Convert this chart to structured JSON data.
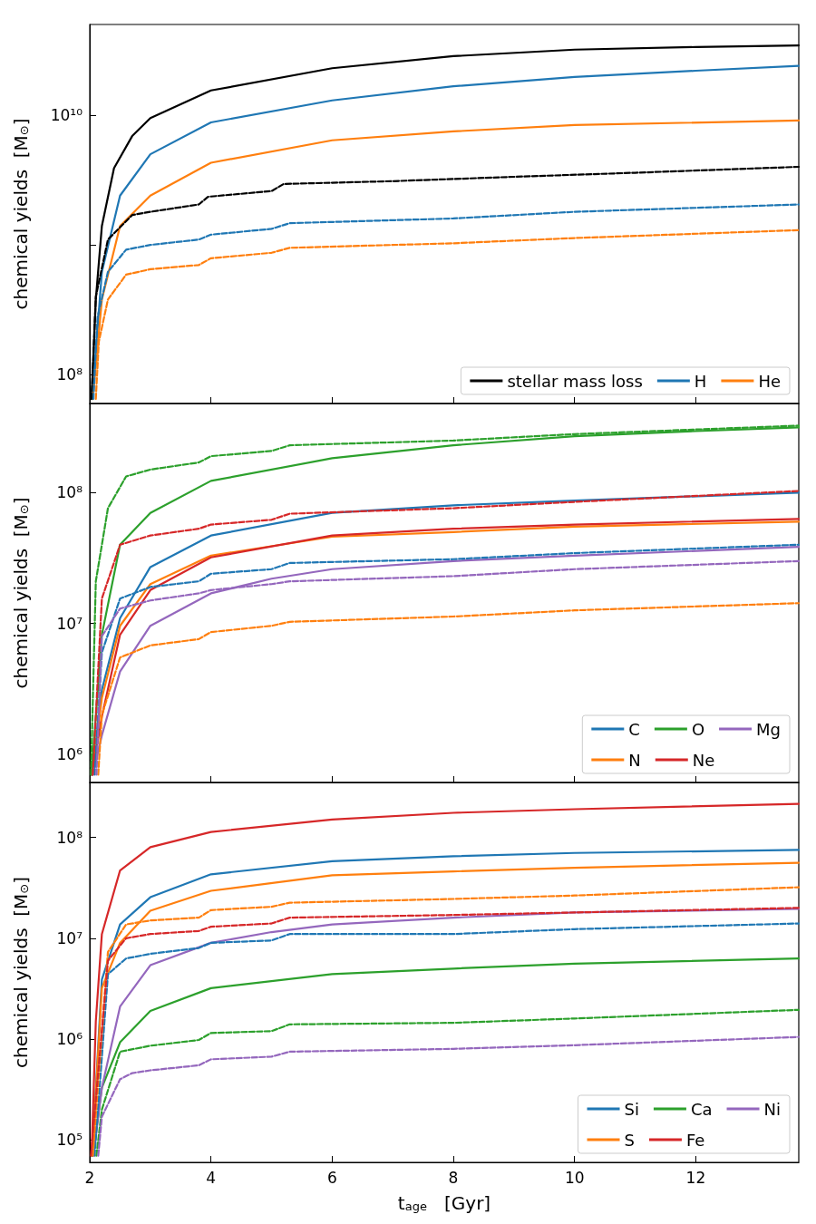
{
  "chart_data": [
    {
      "type": "line",
      "ylabel": "chemical yields  [M$_{⊙}$]",
      "log": "y",
      "xlim": [
        2,
        13.7
      ],
      "xticks": [
        2,
        4,
        6,
        8,
        10,
        12
      ],
      "ylim": [
        60000000.0,
        50000000000.0
      ],
      "yticks": [
        {
          "value": 100000000.0,
          "label": "10⁸"
        },
        {
          "value": 1000000000.0,
          "label": null
        },
        {
          "value": 10000000000.0,
          "label": "10¹⁰"
        }
      ],
      "tick_labels": "y",
      "legend": "bottom right",
      "marker": "none",
      "grid": false,
      "series": [
        {
          "name": "stellar mass loss",
          "color": "#000000",
          "line_style": "solid",
          "x": [
            2.03,
            2.1,
            2.2,
            2.4,
            2.7,
            3,
            4,
            6,
            8,
            10,
            12,
            13.7
          ],
          "values": [
            65000000.0,
            380000000.0,
            1400000000.0,
            3900000000.0,
            6900000000.0,
            9500000000.0,
            15500000000.0,
            23000000000.0,
            28500000000.0,
            32000000000.0,
            33500000000.0,
            34500000000.0
          ]
        },
        {
          "name": "H",
          "color": "#1f77b4",
          "line_style": "solid",
          "x": [
            2.04,
            2.2,
            2.5,
            3,
            4,
            6,
            8,
            10,
            12,
            13.7
          ],
          "values": [
            65000000.0,
            620000000.0,
            2400000000.0,
            5000000000.0,
            8800000000.0,
            13000000000.0,
            16700000000.0,
            19700000000.0,
            22000000000.0,
            24000000000.0
          ]
        },
        {
          "name": "He",
          "color": "#ff7f0e",
          "line_style": "solid",
          "x": [
            2.05,
            2.2,
            2.5,
            3,
            4,
            6,
            8,
            10,
            13.7
          ],
          "values": [
            65000000.0,
            380000000.0,
            1400000000.0,
            2400000000.0,
            4300000000.0,
            6400000000.0,
            7500000000.0,
            8400000000.0,
            9100000000.0
          ]
        },
        {
          "color": "#000000",
          "line_style": "dashed",
          "x": [
            2.03,
            2.1,
            2.3,
            2.7,
            3,
            3.8,
            3.95,
            5,
            5.2,
            7,
            9,
            11,
            13.7
          ],
          "values": [
            65000000.0,
            400000000.0,
            1100000000.0,
            1700000000.0,
            1800000000.0,
            2050000000.0,
            2350000000.0,
            2600000000.0,
            2950000000.0,
            3100000000.0,
            3350000000.0,
            3600000000.0,
            4000000000.0
          ]
        },
        {
          "color": "#1f77b4",
          "line_style": "dashed",
          "x": [
            2.06,
            2.13,
            2.3,
            2.6,
            3,
            3.8,
            4,
            5,
            5.3,
            8,
            10,
            13.7
          ],
          "values": [
            65000000.0,
            280000000.0,
            620000000.0,
            920000000.0,
            1000000000.0,
            1100000000.0,
            1200000000.0,
            1330000000.0,
            1470000000.0,
            1600000000.0,
            1800000000.0,
            2050000000.0
          ]
        },
        {
          "color": "#ff7f0e",
          "line_style": "dashed",
          "x": [
            2.1,
            2.15,
            2.3,
            2.6,
            3,
            3.8,
            4,
            5,
            5.3,
            8,
            10,
            13.7
          ],
          "values": [
            65000000.0,
            180000000.0,
            380000000.0,
            590000000.0,
            650000000.0,
            700000000.0,
            790000000.0,
            870000000.0,
            950000000.0,
            1030000000.0,
            1130000000.0,
            1300000000.0
          ]
        }
      ]
    },
    {
      "type": "line",
      "ylabel": "chemical yields  [M$_{⊙}$]",
      "log": "y",
      "xlim": [
        2,
        13.7
      ],
      "xticks": [
        2,
        4,
        6,
        8,
        10,
        12
      ],
      "ylim": [
        610000.0,
        480000000.0
      ],
      "yticks": [
        {
          "value": 1000000.0,
          "label": "10⁶"
        },
        {
          "value": 10000000.0,
          "label": "10⁷"
        },
        {
          "value": 100000000.0,
          "label": "10⁸"
        }
      ],
      "tick_labels": "y",
      "legend": "bottom right",
      "marker": "none",
      "grid": false,
      "series": [
        {
          "name": "C",
          "color": "#1f77b4",
          "line_style": "solid",
          "x": [
            2.04,
            2.2,
            2.5,
            3,
            4,
            6,
            8,
            10,
            13.7
          ],
          "values": [
            700000.0,
            3100000.0,
            11000000.0,
            27000000.0,
            47000000.0,
            70000000.0,
            80000000.0,
            87000000.0,
            100000000.0
          ]
        },
        {
          "name": "N",
          "color": "#ff7f0e",
          "line_style": "solid",
          "x": [
            2.04,
            2.2,
            2.5,
            3,
            4,
            6,
            8,
            10,
            13.7
          ],
          "values": [
            700000.0,
            2700000.0,
            9600000.0,
            20000000.0,
            33000000.0,
            46000000.0,
            50000000.0,
            55000000.0,
            60000000.0
          ]
        },
        {
          "name": "O",
          "color": "#2ca02c",
          "line_style": "solid",
          "x": [
            2.03,
            2.2,
            2.5,
            3,
            4,
            6,
            8,
            10,
            12,
            13.7
          ],
          "values": [
            700000.0,
            8200000.0,
            40000000.0,
            70000000.0,
            123000000.0,
            183000000.0,
            230000000.0,
            270000000.0,
            295000000.0,
            315000000.0
          ]
        },
        {
          "name": "Ne",
          "color": "#d62728",
          "line_style": "solid",
          "x": [
            2.04,
            2.2,
            2.5,
            3,
            4,
            6,
            8,
            10,
            13.7
          ],
          "values": [
            700000.0,
            1950000.0,
            8200000.0,
            18000000.0,
            32000000.0,
            47000000.0,
            53000000.0,
            57000000.0,
            63000000.0
          ]
        },
        {
          "name": "Mg",
          "color": "#9467bd",
          "line_style": "solid",
          "x": [
            2.05,
            2.2,
            2.5,
            3,
            4,
            5,
            6,
            8,
            10,
            13.7
          ],
          "values": [
            700000.0,
            1400000.0,
            4300000.0,
            9600000.0,
            17000000.0,
            22000000.0,
            26000000.0,
            30000000.0,
            33000000.0,
            38500000.0
          ]
        },
        {
          "color": "#1f77b4",
          "line_style": "dashed",
          "x": [
            2.08,
            2.2,
            2.5,
            3,
            3.8,
            4,
            5,
            5.3,
            8,
            10,
            13.7
          ],
          "values": [
            700000.0,
            6000000.0,
            15500000.0,
            19000000.0,
            21000000.0,
            24000000.0,
            26000000.0,
            29000000.0,
            31000000.0,
            34500000.0,
            40000000.0
          ]
        },
        {
          "color": "#ff7f0e",
          "line_style": "dashed",
          "x": [
            2.14,
            2.2,
            2.5,
            3,
            3.8,
            4,
            5,
            5.3,
            8,
            10,
            13.7
          ],
          "values": [
            700000.0,
            2000000.0,
            5500000.0,
            6800000.0,
            7600000.0,
            8600000.0,
            9600000.0,
            10300000.0,
            11300000.0,
            12600000.0,
            14300000.0
          ]
        },
        {
          "color": "#2ca02c",
          "line_style": "dashed",
          "x": [
            2.02,
            2.1,
            2.3,
            2.6,
            3,
            3.8,
            4,
            5,
            5.3,
            8,
            10,
            13.7
          ],
          "values": [
            700000.0,
            21000000.0,
            76000000.0,
            133000000.0,
            150000000.0,
            170000000.0,
            190000000.0,
            208000000.0,
            230000000.0,
            250000000.0,
            280000000.0,
            325000000.0
          ]
        },
        {
          "color": "#d62728",
          "line_style": "dashed",
          "x": [
            2.05,
            2.2,
            2.5,
            3,
            3.8,
            4,
            5,
            5.3,
            8,
            10,
            13.7
          ],
          "values": [
            700000.0,
            15500000.0,
            40000000.0,
            47000000.0,
            53000000.0,
            57000000.0,
            62000000.0,
            69000000.0,
            76000000.0,
            85000000.0,
            103000000.0
          ]
        },
        {
          "color": "#9467bd",
          "line_style": "dashed",
          "x": [
            2.11,
            2.2,
            2.5,
            3,
            3.8,
            4,
            5,
            5.3,
            8,
            10,
            13.7
          ],
          "values": [
            700000.0,
            8000000.0,
            13000000.0,
            15000000.0,
            17000000.0,
            18000000.0,
            20000000.0,
            21000000.0,
            23000000.0,
            26000000.0,
            30000000.0
          ]
        }
      ]
    },
    {
      "type": "line",
      "xlabel": "t$_{age}$   [Gyr]",
      "ylabel": "chemical yields  [M$_{⊙}$]",
      "log": "y",
      "xlim": [
        2,
        13.7
      ],
      "xticks": [
        2,
        4,
        6,
        8,
        10,
        12
      ],
      "ylim": [
        60000.0,
        350000000.0
      ],
      "yticks": [
        {
          "value": 100000.0,
          "label": "10⁵"
        },
        {
          "value": 1000000.0,
          "label": "10⁶"
        },
        {
          "value": 10000000.0,
          "label": "10⁷"
        },
        {
          "value": 100000000.0,
          "label": "10⁸"
        }
      ],
      "legend": "bottom right",
      "marker": "none",
      "grid": false,
      "series": [
        {
          "name": "Si",
          "color": "#1f77b4",
          "line_style": "solid",
          "x": [
            2.04,
            2.2,
            2.5,
            3,
            4,
            6,
            8,
            10,
            13.7
          ],
          "values": [
            70000.0,
            3900000.0,
            13700000.0,
            25500000.0,
            43000000.0,
            58000000.0,
            65000000.0,
            70000000.0,
            75000000.0
          ]
        },
        {
          "name": "S",
          "color": "#ff7f0e",
          "line_style": "solid",
          "x": [
            2.04,
            2.2,
            2.5,
            3,
            4,
            6,
            8,
            10,
            13.7
          ],
          "values": [
            70000.0,
            3200000.0,
            9000000.0,
            18700000.0,
            29500000.0,
            42000000.0,
            46000000.0,
            50000000.0,
            56000000.0
          ]
        },
        {
          "name": "Ca",
          "color": "#2ca02c",
          "line_style": "solid",
          "x": [
            2.05,
            2.2,
            2.5,
            3,
            4,
            6,
            8,
            10,
            13.7
          ],
          "values": [
            70000.0,
            330000.0,
            930000.0,
            1900000.0,
            3200000.0,
            4400000.0,
            5000000.0,
            5600000.0,
            6300000.0
          ]
        },
        {
          "name": "Fe",
          "color": "#d62728",
          "line_style": "solid",
          "x": [
            2.03,
            2.1,
            2.2,
            2.5,
            3,
            4,
            6,
            8,
            10,
            13.7
          ],
          "values": [
            70000.0,
            1500000.0,
            11000000.0,
            47000000.0,
            80000000.0,
            113000000.0,
            150000000.0,
            175000000.0,
            190000000.0,
            215000000.0
          ]
        },
        {
          "name": "Ni",
          "color": "#9467bd",
          "line_style": "solid",
          "x": [
            2.06,
            2.2,
            2.5,
            3,
            4,
            5,
            6,
            8,
            10,
            13.7
          ],
          "values": [
            70000.0,
            330000.0,
            2100000.0,
            5400000.0,
            9000000.0,
            11500000.0,
            13700000.0,
            16000000.0,
            18000000.0,
            19500000.0
          ]
        },
        {
          "color": "#1f77b4",
          "line_style": "dashed",
          "x": [
            2.08,
            2.3,
            2.6,
            3,
            3.8,
            4,
            5,
            5.3,
            8,
            10,
            13.7
          ],
          "values": [
            70000.0,
            4400000.0,
            6300000.0,
            7000000.0,
            8000000.0,
            9000000.0,
            9500000.0,
            11000000.0,
            11000000.0,
            12300000.0,
            14000000.0
          ]
        },
        {
          "color": "#ff7f0e",
          "line_style": "dashed",
          "x": [
            2.05,
            2.3,
            2.6,
            3,
            3.8,
            4,
            5,
            5.3,
            8,
            10,
            13.7
          ],
          "values": [
            70000.0,
            7300000.0,
            13700000.0,
            15000000.0,
            16000000.0,
            19000000.0,
            20500000.0,
            22500000.0,
            24500000.0,
            26500000.0,
            32000000.0
          ]
        },
        {
          "color": "#2ca02c",
          "line_style": "dashed",
          "x": [
            2.11,
            2.2,
            2.5,
            3,
            3.8,
            4,
            5,
            5.3,
            8,
            10,
            13.7
          ],
          "values": [
            70000.0,
            200000.0,
            750000.0,
            860000.0,
            980000.0,
            1150000.0,
            1200000.0,
            1400000.0,
            1450000.0,
            1600000.0,
            1950000.0
          ]
        },
        {
          "color": "#d62728",
          "line_style": "dashed",
          "x": [
            2.02,
            2.3,
            2.6,
            3,
            3.8,
            4,
            5,
            5.3,
            8,
            10,
            13.7
          ],
          "values": [
            70000.0,
            6000000.0,
            10000000.0,
            11000000.0,
            11800000.0,
            13000000.0,
            14000000.0,
            16000000.0,
            17000000.0,
            18000000.0,
            20000000.0
          ]
        },
        {
          "color": "#9467bd",
          "line_style": "dashed",
          "x": [
            2.14,
            2.2,
            2.5,
            2.7,
            3,
            3.8,
            4,
            5,
            5.3,
            8,
            10,
            13.7
          ],
          "values": [
            70000.0,
            170000.0,
            400000.0,
            460000.0,
            490000.0,
            550000.0,
            630000.0,
            670000.0,
            750000.0,
            800000.0,
            870000.0,
            1050000.0
          ]
        }
      ]
    }
  ]
}
